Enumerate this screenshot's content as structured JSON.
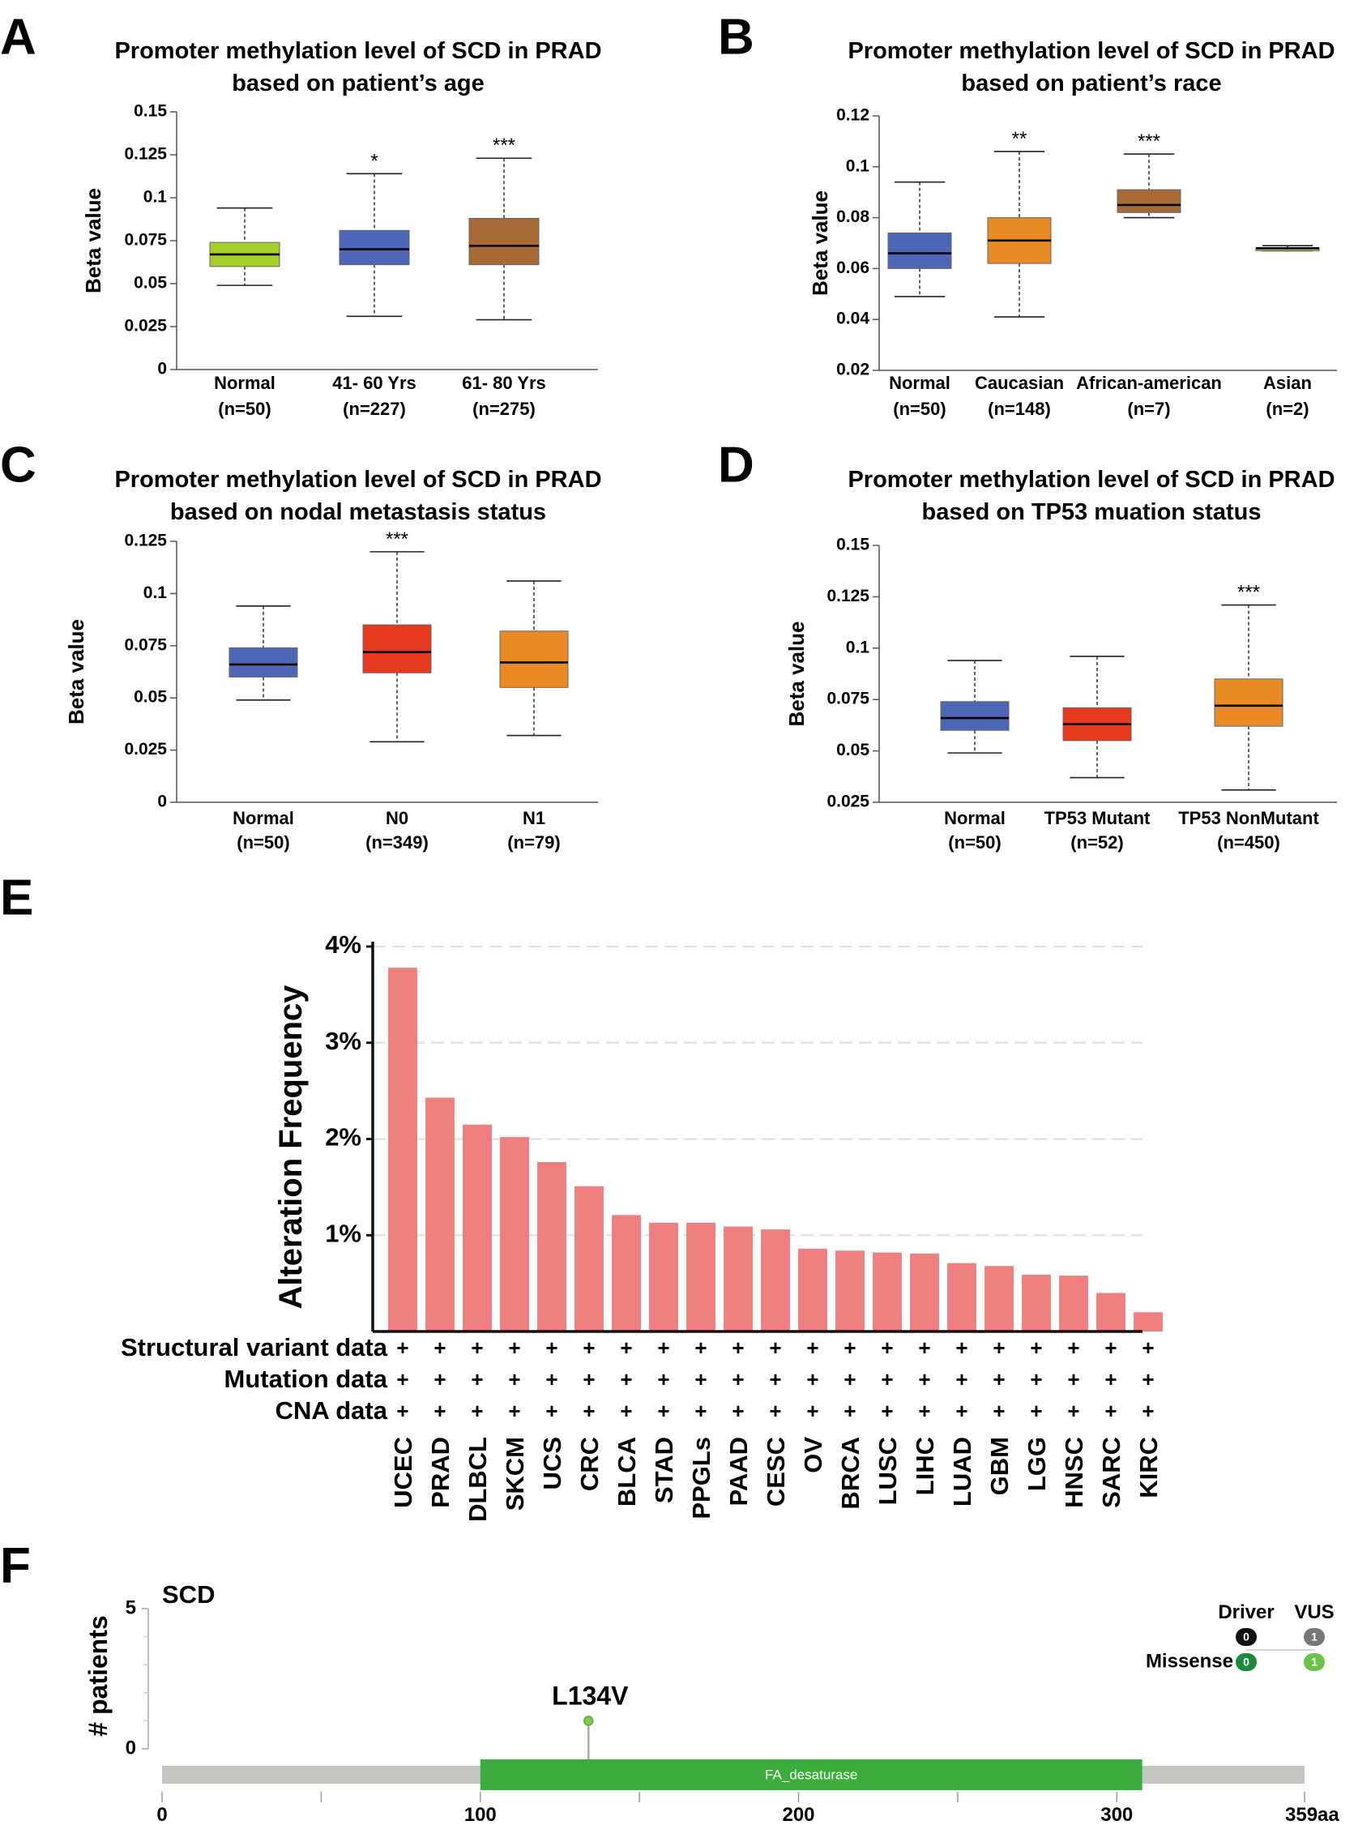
{
  "chart_data": [
    {
      "panel_label": "A",
      "type": "box",
      "title": [
        "Promoter methylation level of SCD in PRAD",
        "based on patient’s age"
      ],
      "ylabel": "Beta value",
      "ylim": [
        0,
        0.15
      ],
      "yticks": [
        "0",
        "0.025",
        "0.05",
        "0.075",
        "0.1",
        "0.125",
        "0.15"
      ],
      "groups": [
        {
          "name": "Normal",
          "n": "(n=50)",
          "color": "#a3cf29",
          "min": 0.049,
          "q1": 0.06,
          "median": 0.067,
          "q3": 0.074,
          "max": 0.094,
          "sig": ""
        },
        {
          "name": "41- 60 Yrs",
          "n": "(n=227)",
          "color": "#4d66b5",
          "min": 0.031,
          "q1": 0.061,
          "median": 0.07,
          "q3": 0.081,
          "max": 0.114,
          "sig": "*"
        },
        {
          "name": "61- 80 Yrs",
          "n": "(n=275)",
          "color": "#a76a36",
          "min": 0.029,
          "q1": 0.061,
          "median": 0.072,
          "q3": 0.088,
          "max": 0.123,
          "sig": "***"
        }
      ]
    },
    {
      "panel_label": "B",
      "type": "box",
      "title": [
        "Promoter methylation level of SCD in PRAD",
        "based on patient’s race"
      ],
      "ylabel": "Beta value",
      "ylim": [
        0.02,
        0.12
      ],
      "yticks": [
        "0.02",
        "0.04",
        "0.06",
        "0.08",
        "0.1",
        "0.12"
      ],
      "groups": [
        {
          "name": "Normal",
          "n": "(n=50)",
          "color": "#4d66b5",
          "min": 0.049,
          "q1": 0.06,
          "median": 0.066,
          "q3": 0.074,
          "max": 0.094,
          "sig": ""
        },
        {
          "name": "Caucasian",
          "n": "(n=148)",
          "color": "#ea8a24",
          "min": 0.041,
          "q1": 0.062,
          "median": 0.071,
          "q3": 0.08,
          "max": 0.106,
          "sig": "**"
        },
        {
          "name": "African-american",
          "n": "(n=7)",
          "color": "#a76a36",
          "min": 0.08,
          "q1": 0.082,
          "median": 0.085,
          "q3": 0.091,
          "max": 0.105,
          "sig": "***"
        },
        {
          "name": "Asian",
          "n": "(n=2)",
          "color": "#a3cf29",
          "min": 0.067,
          "q1": 0.067,
          "median": 0.068,
          "q3": 0.068,
          "max": 0.069,
          "sig": ""
        }
      ]
    },
    {
      "panel_label": "C",
      "type": "box",
      "title": [
        "Promoter methylation level of SCD in PRAD",
        "based on nodal metastasis status"
      ],
      "ylabel": "Beta value",
      "ylim": [
        0,
        0.125
      ],
      "yticks": [
        "0",
        "0.025",
        "0.05",
        "0.075",
        "0.1",
        "0.125"
      ],
      "groups": [
        {
          "name": "Normal",
          "n": "(n=50)",
          "color": "#4d66b5",
          "min": 0.049,
          "q1": 0.06,
          "median": 0.066,
          "q3": 0.074,
          "max": 0.094,
          "sig": ""
        },
        {
          "name": "N0",
          "n": "(n=349)",
          "color": "#e63a1e",
          "min": 0.029,
          "q1": 0.062,
          "median": 0.072,
          "q3": 0.085,
          "max": 0.12,
          "sig": "***"
        },
        {
          "name": "N1",
          "n": "(n=79)",
          "color": "#ea8a24",
          "min": 0.032,
          "q1": 0.055,
          "median": 0.067,
          "q3": 0.082,
          "max": 0.106,
          "sig": ""
        }
      ]
    },
    {
      "panel_label": "D",
      "type": "box",
      "title": [
        "Promoter methylation level of SCD in PRAD",
        "based on TP53 muation status"
      ],
      "ylabel": "Beta value",
      "ylim": [
        0.025,
        0.15
      ],
      "yticks": [
        "0.025",
        "0.05",
        "0.075",
        "0.1",
        "0.125",
        "0.15"
      ],
      "groups": [
        {
          "name": "Normal",
          "n": "(n=50)",
          "color": "#4d66b5",
          "min": 0.049,
          "q1": 0.06,
          "median": 0.066,
          "q3": 0.074,
          "max": 0.094,
          "sig": ""
        },
        {
          "name": "TP53 Mutant",
          "n": "(n=52)",
          "color": "#e63a1e",
          "min": 0.037,
          "q1": 0.055,
          "median": 0.063,
          "q3": 0.071,
          "max": 0.096,
          "sig": ""
        },
        {
          "name": "TP53 NonMutant",
          "n": "(n=450)",
          "color": "#ea8a24",
          "min": 0.031,
          "q1": 0.062,
          "median": 0.072,
          "q3": 0.085,
          "max": 0.121,
          "sig": "***"
        }
      ]
    },
    {
      "panel_label": "E",
      "type": "bar",
      "ylabel": "Alteration Frequency",
      "ylim": [
        0,
        4
      ],
      "yticks": [
        "1%",
        "2%",
        "3%",
        "4%"
      ],
      "bar_color": "#ef7f7f",
      "categories": [
        "UCEC",
        "PRAD",
        "DLBCL",
        "SKCM",
        "UCS",
        "CRC",
        "BLCA",
        "STAD",
        "PPGLs",
        "PAAD",
        "CESC",
        "OV",
        "BRCA",
        "LUSC",
        "LIHC",
        "LUAD",
        "GBM",
        "LGG",
        "HNSC",
        "SARC",
        "KIRC"
      ],
      "values": [
        3.78,
        2.43,
        2.15,
        2.02,
        1.76,
        1.51,
        1.21,
        1.13,
        1.13,
        1.09,
        1.06,
        0.86,
        0.84,
        0.82,
        0.81,
        0.71,
        0.68,
        0.59,
        0.58,
        0.4,
        0.2
      ],
      "data_rows": [
        "Structural variant data",
        "Mutation data",
        "CNA data"
      ],
      "row_marker": "+"
    },
    {
      "panel_label": "F",
      "type": "lollipop",
      "gene": "SCD",
      "ylabel": "# patients",
      "ylim": [
        0,
        5
      ],
      "yticks": [
        "0",
        "5"
      ],
      "xlim": [
        0,
        359
      ],
      "xticks": [
        "0",
        "100",
        "200",
        "300",
        "359aa"
      ],
      "domain": {
        "name": "FA_desaturase",
        "start": 100,
        "end": 308,
        "color": "#3cad3c"
      },
      "mutations": [
        {
          "label": "L134V",
          "position": 134,
          "count": 1,
          "color": "#7ec850"
        }
      ],
      "legend": {
        "columns": [
          "Driver",
          "VUS"
        ],
        "row_label": "Missense",
        "values": [
          {
            "text": "0",
            "color": "#111111"
          },
          {
            "text": "1",
            "color": "#777777"
          },
          {
            "text": "0",
            "color": "#1b8a3a"
          },
          {
            "text": "1",
            "color": "#6cc24a"
          }
        ]
      }
    }
  ]
}
